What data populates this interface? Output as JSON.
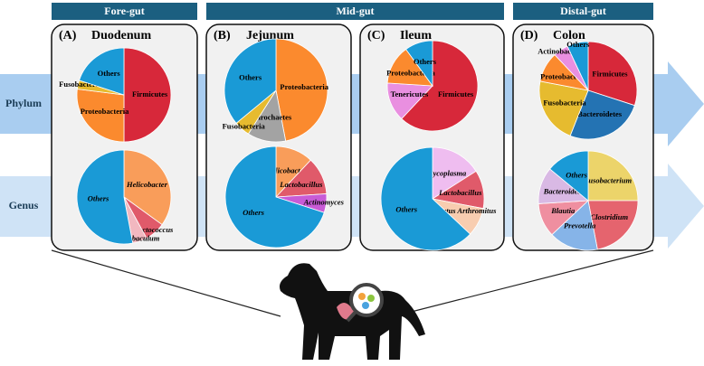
{
  "regions": [
    "Fore-gut",
    "Mid-gut",
    "Distal-gut"
  ],
  "panels": [
    {
      "label": "(A)",
      "title": "Duodenum"
    },
    {
      "label": "(B)",
      "title": "Jejunum"
    },
    {
      "label": "(C)",
      "title": "Ileum"
    },
    {
      "label": "(D)",
      "title": "Colon"
    }
  ],
  "rows": [
    "Phylum",
    "Genus"
  ],
  "chart_data": [
    {
      "type": "pie",
      "categories": [
        "Firmicutes",
        "Proteobacteria",
        "Fusobacteria",
        "Others"
      ],
      "values": [
        50,
        27,
        3,
        20
      ],
      "colors": [
        "#d7283a",
        "#fb8a2e",
        "#e6bb2f",
        "#1a9ad6"
      ]
    },
    {
      "type": "pie",
      "categories": [
        "Helicobacter",
        "Lactococcus",
        "Allobaculum",
        "Others"
      ],
      "values": [
        35,
        7,
        5,
        53
      ],
      "colors": [
        "#f99d5a",
        "#e05a6a",
        "#f2b8c0",
        "#1a9ad6"
      ],
      "italic": true
    },
    {
      "type": "pie",
      "categories": [
        "Proteobacteria",
        "Spirochaetes",
        "Fusobacteria",
        "Others"
      ],
      "values": [
        47,
        12,
        5,
        36
      ],
      "colors": [
        "#fb8a2e",
        "#a3a3a3",
        "#e6bb2f",
        "#1a9ad6"
      ]
    },
    {
      "type": "pie",
      "categories": [
        "Helicobacter",
        "Lactobacillus",
        "Actinomyces",
        "Others"
      ],
      "values": [
        12,
        12,
        6,
        70
      ],
      "colors": [
        "#f99d5a",
        "#e05a6a",
        "#c85bd6",
        "#1a9ad6"
      ],
      "italic": true
    },
    {
      "type": "pie",
      "categories": [
        "Firmicutes",
        "Tenericutes",
        "Proteobacteria",
        "Others"
      ],
      "values": [
        62,
        14,
        14,
        10
      ],
      "colors": [
        "#d7283a",
        "#e98fe0",
        "#fb8a2e",
        "#1a9ad6"
      ]
    },
    {
      "type": "pie",
      "categories": [
        "Mycoplasma",
        "Lactobacillus",
        "Candidatus Arthromitus",
        "Others"
      ],
      "values": [
        16,
        12,
        9,
        63
      ],
      "colors": [
        "#efbdf0",
        "#e05a6a",
        "#f8cdb0",
        "#1a9ad6"
      ],
      "italic": true
    },
    {
      "type": "pie",
      "categories": [
        "Firmicutes",
        "Bacteroidetes",
        "Fusobacteria",
        "Proteobacteria",
        "Actinobacteria",
        "Others"
      ],
      "values": [
        30,
        26,
        22,
        10,
        5,
        7
      ],
      "colors": [
        "#d7283a",
        "#2473b3",
        "#e6bb2f",
        "#fb8a2e",
        "#e98fe0",
        "#1a9ad6"
      ]
    },
    {
      "type": "pie",
      "categories": [
        "Fusobacterium",
        "Clostridium",
        "Prevotella",
        "Blautia",
        "Bacteroides",
        "Others"
      ],
      "values": [
        25,
        22,
        16,
        11,
        12,
        14
      ],
      "colors": [
        "#ecd46a",
        "#e5646e",
        "#86b4e8",
        "#ef8fa0",
        "#d9b9e4",
        "#1a9ad6"
      ],
      "italic": true
    }
  ]
}
